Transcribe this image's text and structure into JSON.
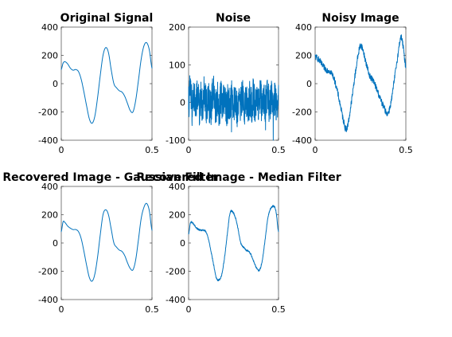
{
  "figure": {
    "background": "#ffffff",
    "line_color": "#0072bd"
  },
  "chart_data": [
    {
      "type": "line",
      "title": "Original Signal",
      "xlabel": "",
      "ylabel": "",
      "xlim": [
        0,
        0.5
      ],
      "ylim": [
        -400,
        400
      ],
      "xticks": [
        0,
        0.5
      ],
      "xtick_labels": [
        "0",
        "0.5"
      ],
      "yticks": [
        -400,
        -200,
        0,
        200,
        400
      ],
      "ytick_labels": [
        "-400",
        "-200",
        "0",
        "200",
        "400"
      ],
      "grid": false,
      "noise": 0,
      "series": [
        {
          "name": "Original Signal",
          "x": [
            0,
            0.01,
            0.02,
            0.035,
            0.05,
            0.065,
            0.08,
            0.095,
            0.11,
            0.125,
            0.14,
            0.155,
            0.17,
            0.185,
            0.2,
            0.215,
            0.23,
            0.245,
            0.26,
            0.275,
            0.29,
            0.305,
            0.32,
            0.335,
            0.35,
            0.365,
            0.38,
            0.395,
            0.41,
            0.425,
            0.44,
            0.455,
            0.47,
            0.485,
            0.5
          ],
          "y": [
            100,
            145,
            155,
            140,
            110,
            95,
            100,
            85,
            30,
            -60,
            -160,
            -250,
            -280,
            -230,
            -100,
            60,
            200,
            255,
            220,
            100,
            0,
            -30,
            -50,
            -60,
            -90,
            -140,
            -190,
            -200,
            -120,
            20,
            170,
            265,
            290,
            240,
            110
          ]
        }
      ]
    },
    {
      "type": "line",
      "title": "Noise",
      "xlabel": "",
      "ylabel": "",
      "xlim": [
        0,
        0.5
      ],
      "ylim": [
        -100,
        200
      ],
      "xticks": [
        0,
        0.5
      ],
      "xtick_labels": [
        "0",
        "0.5"
      ],
      "yticks": [
        -100,
        0,
        100,
        200
      ],
      "ytick_labels": [
        "-100",
        "0",
        "100",
        "200"
      ],
      "grid": false,
      "noise": 0,
      "series": [
        {
          "name": "Noise",
          "x": [
            0,
            0.01,
            0.02,
            0.03,
            0.04,
            0.05,
            0.06,
            0.07,
            0.08,
            0.09,
            0.1,
            0.11,
            0.12,
            0.13,
            0.14,
            0.15,
            0.16,
            0.17,
            0.18,
            0.19,
            0.2,
            0.21,
            0.22,
            0.23,
            0.24,
            0.25,
            0.26,
            0.27,
            0.28,
            0.29,
            0.3,
            0.31,
            0.32,
            0.33,
            0.34,
            0.35,
            0.36,
            0.37,
            0.38,
            0.39,
            0.4,
            0.41,
            0.42,
            0.43,
            0.44,
            0.45,
            0.46,
            0.47,
            0.48,
            0.49,
            0.5
          ],
          "y": [
            -5,
            105,
            -60,
            45,
            -35,
            70,
            -45,
            25,
            -55,
            60,
            -30,
            40,
            -65,
            15,
            50,
            -40,
            30,
            -70,
            55,
            -20,
            45,
            -50,
            20,
            -35,
            65,
            -25,
            35,
            -55,
            40,
            -15,
            55,
            -45,
            25,
            -60,
            30,
            -20,
            50,
            -40,
            15,
            -30,
            45,
            -55,
            20,
            -25,
            55,
            -35,
            30,
            -45,
            40,
            -20,
            10
          ]
        }
      ]
    },
    {
      "type": "line",
      "title": "Noisy Image",
      "xlabel": "",
      "ylabel": "",
      "xlim": [
        0,
        0.5
      ],
      "ylim": [
        -400,
        400
      ],
      "xticks": [
        0,
        0.5
      ],
      "xtick_labels": [
        "0",
        "0.5"
      ],
      "yticks": [
        -400,
        -200,
        0,
        200,
        400
      ],
      "ytick_labels": [
        "-400",
        "-200",
        "0",
        "200",
        "400"
      ],
      "grid": false,
      "noise": 22,
      "series": [
        {
          "name": "Noisy Image",
          "x": [
            0,
            0.02,
            0.04,
            0.06,
            0.08,
            0.1,
            0.12,
            0.14,
            0.16,
            0.17,
            0.18,
            0.2,
            0.22,
            0.24,
            0.25,
            0.26,
            0.28,
            0.3,
            0.32,
            0.34,
            0.36,
            0.38,
            0.4,
            0.42,
            0.44,
            0.46,
            0.47,
            0.48,
            0.5
          ],
          "y": [
            190,
            170,
            130,
            100,
            90,
            50,
            -40,
            -160,
            -280,
            -320,
            -290,
            -130,
            60,
            220,
            270,
            250,
            150,
            60,
            20,
            -40,
            -110,
            -170,
            -210,
            -120,
            60,
            230,
            320,
            300,
            120
          ]
        }
      ]
    },
    {
      "type": "line",
      "title": "Recovered Image - Gaussian Filter",
      "xlabel": "",
      "ylabel": "",
      "xlim": [
        0,
        0.5
      ],
      "ylim": [
        -400,
        400
      ],
      "xticks": [
        0,
        0.5
      ],
      "xtick_labels": [
        "0",
        "0.5"
      ],
      "yticks": [
        -400,
        -200,
        0,
        200,
        400
      ],
      "ytick_labels": [
        "-400",
        "-200",
        "0",
        "200",
        "400"
      ],
      "grid": false,
      "noise": 0,
      "series": [
        {
          "name": "Recovered Image - Gaussian Filter",
          "x": [
            0,
            0.01,
            0.02,
            0.035,
            0.05,
            0.065,
            0.08,
            0.095,
            0.11,
            0.125,
            0.14,
            0.155,
            0.17,
            0.185,
            0.2,
            0.215,
            0.23,
            0.245,
            0.26,
            0.275,
            0.29,
            0.305,
            0.32,
            0.335,
            0.35,
            0.365,
            0.38,
            0.395,
            0.41,
            0.425,
            0.44,
            0.455,
            0.47,
            0.485,
            0.5
          ],
          "y": [
            80,
            150,
            145,
            120,
            105,
            95,
            95,
            80,
            30,
            -60,
            -160,
            -245,
            -270,
            -220,
            -100,
            60,
            200,
            235,
            200,
            100,
            0,
            -30,
            -50,
            -60,
            -90,
            -140,
            -180,
            -190,
            -120,
            20,
            170,
            250,
            280,
            230,
            90
          ]
        }
      ]
    },
    {
      "type": "line",
      "title": "Recovered Image - Median Filter",
      "xlabel": "",
      "ylabel": "",
      "xlim": [
        0,
        0.5
      ],
      "ylim": [
        -400,
        400
      ],
      "xticks": [
        0,
        0.5
      ],
      "xtick_labels": [
        "0",
        "0.5"
      ],
      "yticks": [
        -400,
        -200,
        0,
        200,
        400
      ],
      "ytick_labels": [
        "-400",
        "-200",
        "0",
        "200",
        "400"
      ],
      "grid": false,
      "noise": 6,
      "series": [
        {
          "name": "Recovered Image - Median Filter",
          "x": [
            0,
            0.01,
            0.02,
            0.035,
            0.05,
            0.065,
            0.08,
            0.095,
            0.11,
            0.125,
            0.14,
            0.155,
            0.17,
            0.185,
            0.2,
            0.215,
            0.23,
            0.245,
            0.26,
            0.275,
            0.29,
            0.305,
            0.32,
            0.335,
            0.35,
            0.365,
            0.38,
            0.395,
            0.41,
            0.425,
            0.44,
            0.455,
            0.47,
            0.485,
            0.5
          ],
          "y": [
            60,
            140,
            145,
            120,
            100,
            90,
            90,
            80,
            30,
            -60,
            -160,
            -250,
            -260,
            -220,
            -100,
            60,
            210,
            220,
            180,
            100,
            0,
            -30,
            -50,
            -60,
            -90,
            -140,
            -180,
            -190,
            -120,
            20,
            170,
            240,
            260,
            230,
            80
          ]
        }
      ]
    }
  ]
}
